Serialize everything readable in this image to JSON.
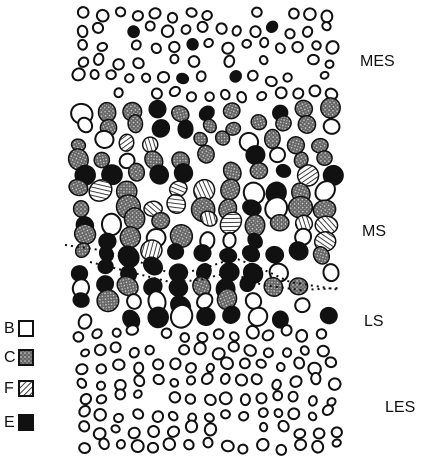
{
  "regions": [
    {
      "label": "MES"
    },
    {
      "label": "MS"
    },
    {
      "label": "LS"
    },
    {
      "label": "LES"
    }
  ],
  "legend": [
    {
      "label": "B"
    },
    {
      "label": "C"
    },
    {
      "label": "F"
    },
    {
      "label": "E"
    }
  ]
}
